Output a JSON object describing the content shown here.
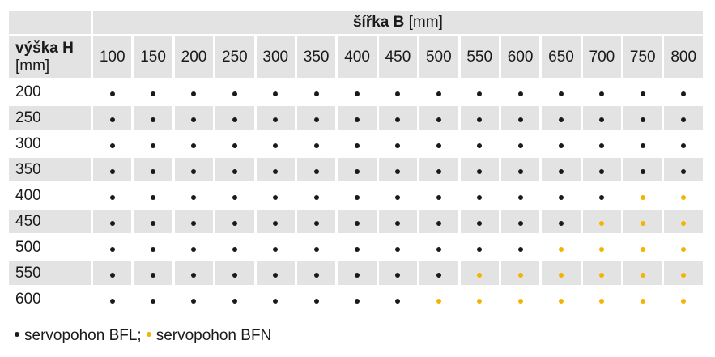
{
  "table": {
    "header": {
      "corner_top": "",
      "width_title": "šířka B",
      "width_unit": "[mm]",
      "height_title": "výška H",
      "height_unit": "[mm]"
    },
    "widths": [
      100,
      150,
      200,
      250,
      300,
      350,
      400,
      450,
      500,
      550,
      600,
      650,
      700,
      750,
      800
    ],
    "rows": [
      {
        "height": 200,
        "cells": [
          "#1a1a1a",
          "#1a1a1a",
          "#1a1a1a",
          "#1a1a1a",
          "#1a1a1a",
          "#1a1a1a",
          "#1a1a1a",
          "#1a1a1a",
          "#1a1a1a",
          "#1a1a1a",
          "#1a1a1a",
          "#1a1a1a",
          "#1a1a1a",
          "#1a1a1a",
          "#1a1a1a"
        ]
      },
      {
        "height": 250,
        "cells": [
          "#1a1a1a",
          "#1a1a1a",
          "#1a1a1a",
          "#1a1a1a",
          "#1a1a1a",
          "#1a1a1a",
          "#1a1a1a",
          "#1a1a1a",
          "#1a1a1a",
          "#1a1a1a",
          "#1a1a1a",
          "#1a1a1a",
          "#1a1a1a",
          "#1a1a1a",
          "#1a1a1a"
        ]
      },
      {
        "height": 300,
        "cells": [
          "#1a1a1a",
          "#1a1a1a",
          "#1a1a1a",
          "#1a1a1a",
          "#1a1a1a",
          "#1a1a1a",
          "#1a1a1a",
          "#1a1a1a",
          "#1a1a1a",
          "#1a1a1a",
          "#1a1a1a",
          "#1a1a1a",
          "#1a1a1a",
          "#1a1a1a",
          "#1a1a1a"
        ]
      },
      {
        "height": 350,
        "cells": [
          "#1a1a1a",
          "#1a1a1a",
          "#1a1a1a",
          "#1a1a1a",
          "#1a1a1a",
          "#1a1a1a",
          "#1a1a1a",
          "#1a1a1a",
          "#1a1a1a",
          "#1a1a1a",
          "#1a1a1a",
          "#1a1a1a",
          "#1a1a1a",
          "#1a1a1a",
          "#1a1a1a"
        ]
      },
      {
        "height": 400,
        "cells": [
          "#1a1a1a",
          "#1a1a1a",
          "#1a1a1a",
          "#1a1a1a",
          "#1a1a1a",
          "#1a1a1a",
          "#1a1a1a",
          "#1a1a1a",
          "#1a1a1a",
          "#1a1a1a",
          "#1a1a1a",
          "#1a1a1a",
          "#1a1a1a",
          "#f2b400",
          "#f2b400"
        ]
      },
      {
        "height": 450,
        "cells": [
          "#1a1a1a",
          "#1a1a1a",
          "#1a1a1a",
          "#1a1a1a",
          "#1a1a1a",
          "#1a1a1a",
          "#1a1a1a",
          "#1a1a1a",
          "#1a1a1a",
          "#1a1a1a",
          "#1a1a1a",
          "#1a1a1a",
          "#f2b400",
          "#f2b400",
          "#f2b400"
        ]
      },
      {
        "height": 500,
        "cells": [
          "#1a1a1a",
          "#1a1a1a",
          "#1a1a1a",
          "#1a1a1a",
          "#1a1a1a",
          "#1a1a1a",
          "#1a1a1a",
          "#1a1a1a",
          "#1a1a1a",
          "#1a1a1a",
          "#1a1a1a",
          "#f2b400",
          "#f2b400",
          "#f2b400",
          "#f2b400"
        ]
      },
      {
        "height": 550,
        "cells": [
          "#1a1a1a",
          "#1a1a1a",
          "#1a1a1a",
          "#1a1a1a",
          "#1a1a1a",
          "#1a1a1a",
          "#1a1a1a",
          "#1a1a1a",
          "#1a1a1a",
          "#f2b400",
          "#f2b400",
          "#f2b400",
          "#f2b400",
          "#f2b400",
          "#f2b400"
        ]
      },
      {
        "height": 600,
        "cells": [
          "#1a1a1a",
          "#1a1a1a",
          "#1a1a1a",
          "#1a1a1a",
          "#1a1a1a",
          "#1a1a1a",
          "#1a1a1a",
          "#1a1a1a",
          "#f2b400",
          "#f2b400",
          "#f2b400",
          "#f2b400",
          "#f2b400",
          "#f2b400",
          "#f2b400"
        ]
      }
    ]
  },
  "legend": [
    {
      "label": "servopohon BFL;",
      "color": "#1a1a1a"
    },
    {
      "label": "servopohon BFN",
      "color": "#f2b400"
    }
  ]
}
